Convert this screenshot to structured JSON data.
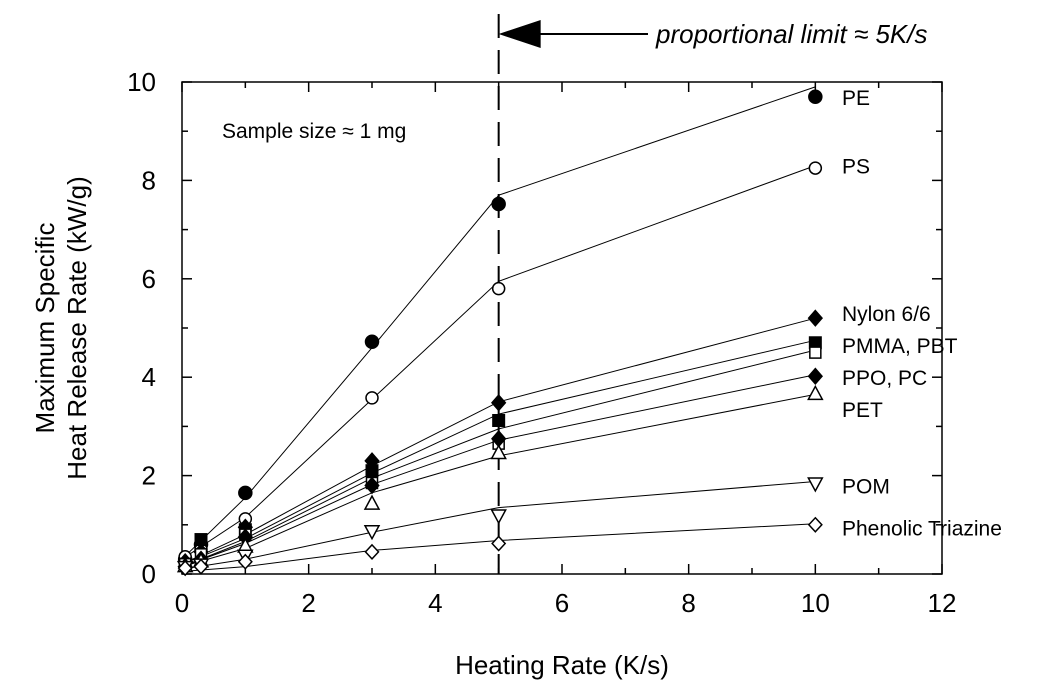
{
  "chart_data": {
    "type": "scatter",
    "title": "",
    "xlabel": "Heating Rate (K/s)",
    "ylabel_lines": [
      "Maximum Specific",
      "Heat Release Rate (kW/g)"
    ],
    "xlim": [
      0,
      12
    ],
    "ylim": [
      0,
      10
    ],
    "xticks": [
      "0",
      "2",
      "4",
      "6",
      "8",
      "10",
      "12"
    ],
    "yticks": [
      "0",
      "2",
      "4",
      "6",
      "8",
      "10"
    ],
    "grid": false,
    "annotations": {
      "sample_size": "Sample size ≈ 1 mg",
      "proportional_limit": "proportional limit ≈ 5K/s",
      "limit_x": 5
    },
    "series": [
      {
        "name": "PE",
        "marker": "circle-filled",
        "points": [
          [
            0.05,
            0.3
          ],
          [
            0.3,
            0.6
          ],
          [
            1,
            1.65
          ],
          [
            3,
            4.72
          ],
          [
            5,
            7.52
          ],
          [
            10,
            9.7
          ]
        ],
        "line": [
          [
            0,
            0.3
          ],
          [
            1,
            1.55
          ],
          [
            3,
            4.6
          ],
          [
            5,
            7.7
          ],
          [
            10,
            9.9
          ]
        ]
      },
      {
        "name": "PS",
        "marker": "circle-open",
        "points": [
          [
            0.05,
            0.35
          ],
          [
            0.3,
            0.5
          ],
          [
            1,
            1.12
          ],
          [
            3,
            3.58
          ],
          [
            5,
            5.8
          ],
          [
            10,
            8.25
          ]
        ],
        "line": [
          [
            0,
            0.3
          ],
          [
            1,
            1.15
          ],
          [
            3,
            3.55
          ],
          [
            5,
            5.95
          ],
          [
            10,
            8.3
          ]
        ]
      },
      {
        "name": "Nylon 6/6",
        "marker": "diamond-filled",
        "points": [
          [
            0.05,
            0.25
          ],
          [
            0.3,
            0.45
          ],
          [
            1,
            0.95
          ],
          [
            3,
            2.3
          ],
          [
            5,
            3.48
          ],
          [
            10,
            5.2
          ]
        ],
        "line": [
          [
            0,
            0.2
          ],
          [
            1,
            0.8
          ],
          [
            3,
            2.2
          ],
          [
            5,
            3.5
          ],
          [
            10,
            5.2
          ]
        ]
      },
      {
        "name": "PMMA, PBT",
        "marker": "square-filled",
        "points": [
          [
            0.05,
            0.2
          ],
          [
            0.3,
            0.7
          ],
          [
            1,
            0.9
          ],
          [
            3,
            2.1
          ],
          [
            5,
            3.12
          ],
          [
            10,
            4.7
          ]
        ],
        "line": [
          [
            0,
            0.2
          ],
          [
            1,
            0.72
          ],
          [
            3,
            2.05
          ],
          [
            5,
            3.25
          ],
          [
            10,
            4.75
          ]
        ]
      },
      {
        "name": "",
        "marker": "square-open",
        "points": [
          [
            0.05,
            0.2
          ],
          [
            0.3,
            0.4
          ],
          [
            1,
            0.8
          ],
          [
            3,
            1.85
          ],
          [
            5,
            2.65
          ],
          [
            10,
            4.5
          ]
        ],
        "line": [
          [
            0,
            0.15
          ],
          [
            1,
            0.66
          ],
          [
            3,
            1.95
          ],
          [
            5,
            2.95
          ],
          [
            10,
            4.55
          ]
        ]
      },
      {
        "name": "PPO, PC",
        "marker": "diamond-filled",
        "points": [
          [
            0.05,
            0.15
          ],
          [
            0.3,
            0.3
          ],
          [
            1,
            0.75
          ],
          [
            3,
            1.8
          ],
          [
            5,
            2.75
          ],
          [
            10,
            4.02
          ]
        ],
        "line": [
          [
            0,
            0.15
          ],
          [
            1,
            0.62
          ],
          [
            3,
            1.82
          ],
          [
            5,
            2.72
          ],
          [
            10,
            4.05
          ]
        ]
      },
      {
        "name": "PET",
        "marker": "triangle-up-open",
        "points": [
          [
            0.05,
            0.15
          ],
          [
            0.3,
            0.25
          ],
          [
            1,
            0.55
          ],
          [
            3,
            1.42
          ],
          [
            5,
            2.45
          ],
          [
            10,
            3.65
          ]
        ],
        "line": [
          [
            0,
            0.15
          ],
          [
            1,
            0.52
          ],
          [
            3,
            1.65
          ],
          [
            5,
            2.4
          ],
          [
            10,
            3.65
          ]
        ]
      },
      {
        "name": "POM",
        "marker": "triangle-down-open",
        "points": [
          [
            0.05,
            0.15
          ],
          [
            0.3,
            0.2
          ],
          [
            1,
            0.38
          ],
          [
            3,
            0.88
          ],
          [
            5,
            1.2
          ],
          [
            10,
            1.85
          ]
        ],
        "line": [
          [
            0,
            0.1
          ],
          [
            1,
            0.3
          ],
          [
            3,
            0.85
          ],
          [
            5,
            1.35
          ],
          [
            10,
            1.88
          ]
        ]
      },
      {
        "name": "Phenolic Triazine",
        "marker": "diamond-open",
        "points": [
          [
            0.05,
            0.12
          ],
          [
            0.3,
            0.15
          ],
          [
            1,
            0.25
          ],
          [
            3,
            0.45
          ],
          [
            5,
            0.62
          ],
          [
            10,
            1.0
          ]
        ],
        "line": [
          [
            0,
            0.05
          ],
          [
            1,
            0.15
          ],
          [
            3,
            0.48
          ],
          [
            5,
            0.68
          ],
          [
            10,
            1.02
          ]
        ]
      }
    ],
    "series_label_y": [
      9.7,
      8.3,
      5.3,
      4.65,
      4.0,
      3.35,
      1.8,
      0.95
    ]
  }
}
